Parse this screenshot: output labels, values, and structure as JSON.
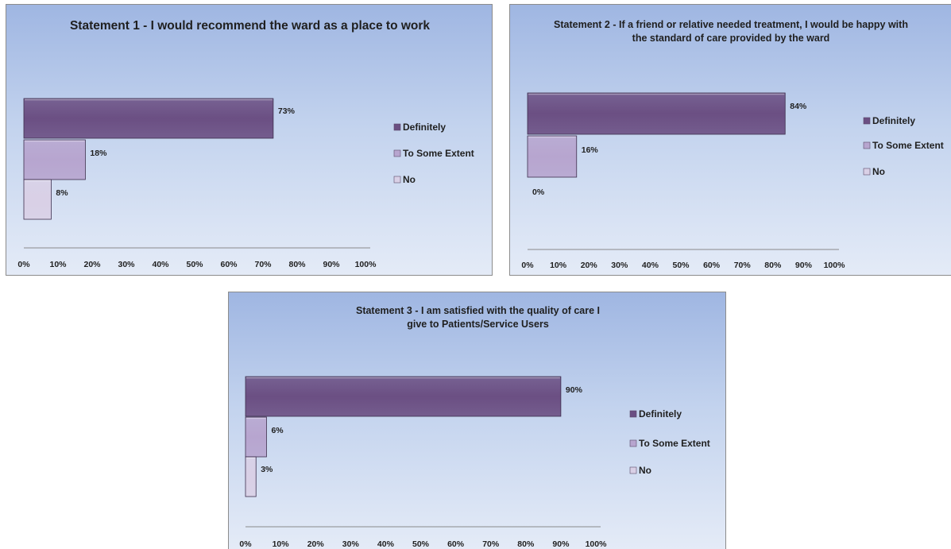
{
  "chart_data": [
    {
      "type": "bar",
      "orientation": "horizontal",
      "title": "Statement 1 - I would recommend the ward as a place to work",
      "categories": [
        "Definitely",
        "To Some Extent",
        "No"
      ],
      "values": [
        73,
        18,
        8
      ],
      "data_labels": [
        "73%",
        "18%",
        "8%"
      ],
      "xlim": [
        0,
        100
      ],
      "x_ticks": [
        "0%",
        "10%",
        "20%",
        "30%",
        "40%",
        "50%",
        "60%",
        "70%",
        "80%",
        "90%",
        "100%"
      ],
      "legend": "right",
      "grid": false
    },
    {
      "type": "bar",
      "orientation": "horizontal",
      "title": "Statement 2 - If a friend or relative needed treatment, I would be happy with the standard of care provided by the ward",
      "categories": [
        "Definitely",
        "To Some Extent",
        "No"
      ],
      "values": [
        84,
        16,
        0
      ],
      "data_labels": [
        "84%",
        "16%",
        "0%"
      ],
      "xlim": [
        0,
        100
      ],
      "x_ticks": [
        "0%",
        "10%",
        "20%",
        "30%",
        "40%",
        "50%",
        "60%",
        "70%",
        "80%",
        "90%",
        "100%"
      ],
      "legend": "right",
      "grid": false
    },
    {
      "type": "bar",
      "orientation": "horizontal",
      "title": "Statement 3 - I am satisfied with the quality of care I give to Patients/Service Users",
      "categories": [
        "Definitely",
        "To Some Extent",
        "No"
      ],
      "values": [
        90,
        6,
        3
      ],
      "data_labels": [
        "90%",
        "6%",
        "3%"
      ],
      "xlim": [
        0,
        100
      ],
      "x_ticks": [
        "0%",
        "10%",
        "20%",
        "30%",
        "40%",
        "50%",
        "60%",
        "70%",
        "80%",
        "90%",
        "100%"
      ],
      "legend": "right",
      "grid": false
    }
  ],
  "colors": {
    "Definitely": "#6b4f83",
    "To Some Extent": "#b7a5cf",
    "No": "#d9d0e6"
  }
}
